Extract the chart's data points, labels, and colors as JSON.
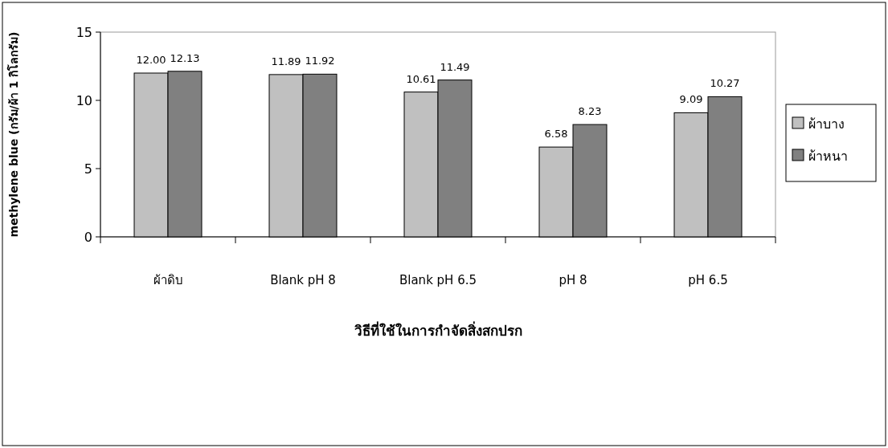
{
  "chart_data": {
    "type": "bar",
    "xlabel": "วิธีที่ใช้ในการกำจัดสิ่งสกปรก",
    "ylabel": "methylene blue (กรัม/ผ้า 1 กิโลกรัม)",
    "categories": [
      "ผ้าดิบ",
      "Blank pH 8",
      "Blank pH 6.5",
      "pH 8",
      "pH 6.5"
    ],
    "series": [
      {
        "name": "ผ้าบาง",
        "color": "#c0c0c0",
        "values": [
          12.0,
          11.89,
          10.61,
          6.58,
          9.09
        ],
        "value_labels": [
          "12.00",
          "11.89",
          "10.61",
          "6.58",
          "9.09"
        ]
      },
      {
        "name": "ผ้าหนา",
        "color": "#808080",
        "values": [
          12.13,
          11.92,
          11.49,
          8.23,
          10.27
        ],
        "value_labels": [
          "12.13",
          "11.92",
          "11.49",
          "8.23",
          "10.27"
        ]
      }
    ],
    "ylim": [
      0,
      15
    ],
    "yticks": [
      0,
      5,
      10,
      15
    ],
    "grid": false,
    "legend": "right"
  }
}
